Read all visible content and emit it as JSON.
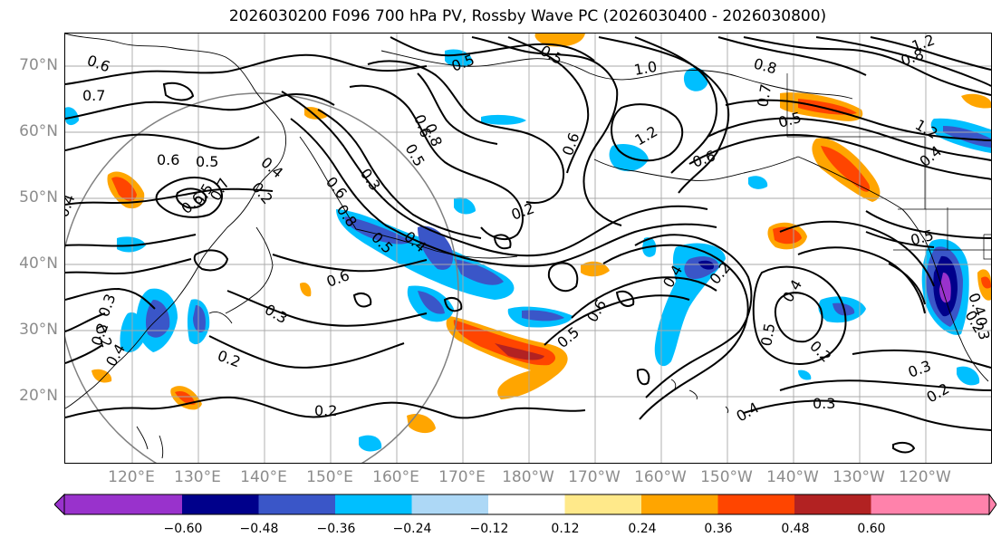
{
  "title": "2026030200 F096 700 hPa PV, Rossby Wave PC (2026030400 - 2026030800)",
  "lat_labels": [
    "70°N",
    "60°N",
    "50°N",
    "40°N",
    "30°N",
    "20°N"
  ],
  "lon_labels": [
    "120°E",
    "130°E",
    "140°E",
    "150°E",
    "160°E",
    "170°E",
    "180°W",
    "170°W",
    "160°W",
    "150°W",
    "140°W",
    "130°W",
    "120°W"
  ],
  "colorbar": {
    "tick_labels": [
      "−0.60",
      "−0.48",
      "−0.36",
      "−0.24",
      "−0.12",
      "0.12",
      "0.24",
      "0.36",
      "0.48",
      "0.60"
    ],
    "colors": [
      "#9932cc",
      "#00008b",
      "#3a56c8",
      "#00bfff",
      "#add8f6",
      "#ffffff",
      "#ffe98a",
      "#ffa500",
      "#ff4500",
      "#b22222",
      "#ff82ab"
    ]
  },
  "contour_labels": {
    "c1": "0.6",
    "c2": "0.7",
    "c3": "0.6",
    "c4": "0.5",
    "c5": "0.4",
    "c6": "0.6",
    "c7": "0.5",
    "c8": "0.7",
    "c9": "0.3",
    "c10": "0.2",
    "c11": "0.2",
    "c12": "0.2",
    "c13": "0.4",
    "c14": "0.3",
    "c15": "0.2",
    "c16": "0.6",
    "c17": "0.6",
    "c18": "0.5",
    "c19": "0.4",
    "c20": "0.3",
    "c21": "0.8",
    "c22": "0.5",
    "c23": "0.6",
    "c24": "0.8",
    "c25": "1.2",
    "c26": "0.6",
    "c27": "0.5",
    "c28": "1.0",
    "c29": "0.8",
    "c30": "0.7",
    "c31": "0.6",
    "c32": "0.5",
    "c33": "0.4",
    "c34": "0.2",
    "c35": "0.6",
    "c36": "0.5",
    "c37": "0.4",
    "c38": "0.2",
    "c39": "0.5",
    "c40": "0.4",
    "c41": "0.2",
    "c42": "0.3",
    "c43": "0.3",
    "c44": "0.4",
    "c45": "0.2",
    "c46": "0.5",
    "c47": "0.4",
    "c48": "1.2",
    "c49": "0.8",
    "c50": "1.2",
    "c51": "0.5",
    "c52": "0.2",
    "c53": "0.3",
    "c54": "0.2",
    "c55": "0.4"
  }
}
